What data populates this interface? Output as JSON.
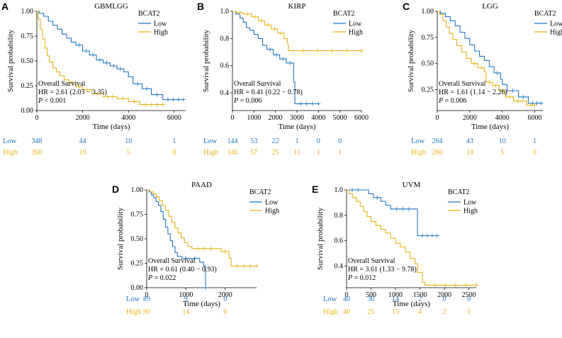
{
  "colors": {
    "low": "#1f77c2",
    "high": "#e8b214",
    "axis": "#000000"
  },
  "chart_data": [
    {
      "type": "line",
      "panel": "A",
      "title": "GBMLGG",
      "xlabel": "Time (days)",
      "ylabel": "Survival probability",
      "xlim": [
        0,
        6500
      ],
      "ylim": [
        0,
        1.0
      ],
      "xticks": [
        0,
        2000,
        4000,
        6000
      ],
      "yticks": [
        0.0,
        0.25,
        0.5,
        0.75,
        1.0
      ],
      "ytick_labels": [
        "0.00",
        "0.25",
        "0.50",
        "0.75",
        "1.00"
      ],
      "legend_title": "BCAT2",
      "legend_labels": [
        "Low",
        "High"
      ],
      "annotation": {
        "title": "Overall Survival",
        "hr": "HR = 2.61  (2.03 − 3.35)",
        "p_label": "P",
        "p_value": " < 0.001"
      },
      "series": [
        {
          "name": "Low",
          "points": [
            [
              0,
              1.0
            ],
            [
              100,
              0.98
            ],
            [
              300,
              0.95
            ],
            [
              500,
              0.9
            ],
            [
              700,
              0.86
            ],
            [
              900,
              0.82
            ],
            [
              1100,
              0.77
            ],
            [
              1300,
              0.73
            ],
            [
              1500,
              0.69
            ],
            [
              1700,
              0.66
            ],
            [
              2000,
              0.6
            ],
            [
              2300,
              0.56
            ],
            [
              2600,
              0.51
            ],
            [
              2900,
              0.48
            ],
            [
              3200,
              0.45
            ],
            [
              3500,
              0.42
            ],
            [
              3800,
              0.39
            ],
            [
              4000,
              0.34
            ],
            [
              4200,
              0.27
            ],
            [
              4600,
              0.22
            ],
            [
              5000,
              0.16
            ],
            [
              5500,
              0.11
            ],
            [
              6400,
              0.11
            ]
          ]
        },
        {
          "name": "High",
          "points": [
            [
              0,
              1.0
            ],
            [
              60,
              0.92
            ],
            [
              150,
              0.82
            ],
            [
              250,
              0.72
            ],
            [
              350,
              0.63
            ],
            [
              450,
              0.55
            ],
            [
              550,
              0.49
            ],
            [
              700,
              0.43
            ],
            [
              850,
              0.39
            ],
            [
              1000,
              0.35
            ],
            [
              1200,
              0.31
            ],
            [
              1400,
              0.28
            ],
            [
              1700,
              0.24
            ],
            [
              2000,
              0.21
            ],
            [
              2400,
              0.17
            ],
            [
              2900,
              0.14
            ],
            [
              3500,
              0.12
            ],
            [
              4000,
              0.09
            ],
            [
              4500,
              0.06
            ],
            [
              5500,
              0.06
            ]
          ]
        }
      ],
      "risk_table": {
        "row_labels": [
          "Low",
          "High"
        ],
        "times": [
          0,
          2000,
          4000,
          6000
        ],
        "low": [
          "348",
          "44",
          "10",
          "1"
        ],
        "high": [
          "350",
          "19",
          "5",
          "0"
        ]
      }
    },
    {
      "type": "line",
      "panel": "B",
      "title": "KIRP",
      "xlabel": "Time (days)",
      "ylabel": "Survival probability",
      "xlim": [
        0,
        6000
      ],
      "ylim": [
        0.27,
        1.0
      ],
      "xticks": [
        0,
        1000,
        2000,
        3000,
        4000,
        5000,
        6000
      ],
      "yticks": [
        0.4,
        0.6,
        0.8,
        1.0
      ],
      "ytick_labels": [
        "0.4",
        "0.6",
        "0.8",
        "1.0"
      ],
      "legend_title": "BCAT2",
      "legend_labels": [
        "Low",
        "High"
      ],
      "annotation": {
        "title": "Overall Survival",
        "hr": "HR = 0.41  (0.22 − 0.78)",
        "p_label": "P",
        "p_value": " = 0.006"
      },
      "series": [
        {
          "name": "Low",
          "points": [
            [
              0,
              1.0
            ],
            [
              150,
              0.98
            ],
            [
              350,
              0.95
            ],
            [
              500,
              0.92
            ],
            [
              650,
              0.88
            ],
            [
              800,
              0.86
            ],
            [
              1000,
              0.83
            ],
            [
              1200,
              0.8
            ],
            [
              1400,
              0.75
            ],
            [
              1600,
              0.72
            ],
            [
              1900,
              0.68
            ],
            [
              2200,
              0.65
            ],
            [
              2500,
              0.62
            ],
            [
              2850,
              0.48
            ],
            [
              2900,
              0.32
            ],
            [
              4000,
              0.32
            ]
          ]
        },
        {
          "name": "High",
          "points": [
            [
              0,
              1.0
            ],
            [
              200,
              0.99
            ],
            [
              500,
              0.98
            ],
            [
              900,
              0.96
            ],
            [
              1200,
              0.93
            ],
            [
              1500,
              0.9
            ],
            [
              1800,
              0.87
            ],
            [
              2100,
              0.84
            ],
            [
              2400,
              0.8
            ],
            [
              2550,
              0.76
            ],
            [
              2600,
              0.71
            ],
            [
              6000,
              0.71
            ]
          ]
        }
      ],
      "risk_table": {
        "row_labels": [
          "Low",
          "High"
        ],
        "times": [
          0,
          1000,
          2000,
          3000,
          4000,
          5000,
          6000
        ],
        "low": [
          "144",
          "53",
          "22",
          "1",
          "0",
          "0",
          ""
        ],
        "high": [
          "146",
          "57",
          "25",
          "11",
          "1",
          "1",
          ""
        ]
      }
    },
    {
      "type": "line",
      "panel": "C",
      "title": "LGG",
      "xlabel": "Time (days)",
      "ylabel": "Survival probability",
      "xlim": [
        0,
        6500
      ],
      "ylim": [
        0.05,
        1.0
      ],
      "xticks": [
        0,
        2000,
        4000,
        6000
      ],
      "yticks": [
        0.25,
        0.5,
        0.75,
        1.0
      ],
      "ytick_labels": [
        "0.25",
        "0.50",
        "0.75",
        "1.00"
      ],
      "legend_title": "BCAT2",
      "legend_labels": [
        "Low",
        "High"
      ],
      "annotation": {
        "title": "Overall Survival",
        "hr": "HR = 1.61  (1.14 − 2.26)",
        "p_label": "P",
        "p_value": " = 0.006"
      },
      "series": [
        {
          "name": "Low",
          "points": [
            [
              0,
              1.0
            ],
            [
              200,
              0.98
            ],
            [
              500,
              0.95
            ],
            [
              800,
              0.91
            ],
            [
              1100,
              0.86
            ],
            [
              1400,
              0.8
            ],
            [
              1700,
              0.74
            ],
            [
              2000,
              0.68
            ],
            [
              2300,
              0.62
            ],
            [
              2600,
              0.57
            ],
            [
              2900,
              0.53
            ],
            [
              3200,
              0.47
            ],
            [
              3500,
              0.41
            ],
            [
              3900,
              0.35
            ],
            [
              4000,
              0.3
            ],
            [
              4300,
              0.24
            ],
            [
              5000,
              0.18
            ],
            [
              5600,
              0.12
            ],
            [
              6400,
              0.12
            ]
          ]
        },
        {
          "name": "High",
          "points": [
            [
              0,
              1.0
            ],
            [
              150,
              0.97
            ],
            [
              350,
              0.91
            ],
            [
              550,
              0.85
            ],
            [
              750,
              0.79
            ],
            [
              950,
              0.73
            ],
            [
              1200,
              0.67
            ],
            [
              1500,
              0.61
            ],
            [
              1800,
              0.55
            ],
            [
              2100,
              0.5
            ],
            [
              2500,
              0.46
            ],
            [
              2900,
              0.42
            ],
            [
              3000,
              0.32
            ],
            [
              3400,
              0.29
            ],
            [
              3800,
              0.24
            ],
            [
              4200,
              0.18
            ],
            [
              4700,
              0.14
            ],
            [
              5500,
              0.1
            ],
            [
              6000,
              0.1
            ]
          ]
        }
      ],
      "risk_table": {
        "row_labels": [
          "Low",
          "High"
        ],
        "times": [
          0,
          2000,
          4000,
          6000
        ],
        "low": [
          "264",
          "43",
          "10",
          "1"
        ],
        "high": [
          "266",
          "18",
          "5",
          "0"
        ]
      }
    },
    {
      "type": "line",
      "panel": "D",
      "title": "PAAD",
      "xlabel": "Time (days)",
      "ylabel": "Survival probability",
      "xlim": [
        0,
        2800
      ],
      "ylim": [
        0,
        1.0
      ],
      "xticks": [
        0,
        1000,
        2000
      ],
      "yticks": [
        0.0,
        0.25,
        0.5,
        0.75,
        1.0
      ],
      "ytick_labels": [
        "0.00",
        "0.25",
        "0.50",
        "0.75",
        "1.00"
      ],
      "legend_title": "BCAT2",
      "legend_labels": [
        "Low",
        "High"
      ],
      "annotation": {
        "title": "Overall Survival",
        "hr": "HR = 0.61  (0.40 − 0.93)",
        "p_label": "P",
        "p_value": " = 0.022"
      },
      "series": [
        {
          "name": "Low",
          "points": [
            [
              0,
              1.0
            ],
            [
              60,
              0.98
            ],
            [
              120,
              0.95
            ],
            [
              180,
              0.92
            ],
            [
              240,
              0.88
            ],
            [
              300,
              0.84
            ],
            [
              360,
              0.78
            ],
            [
              420,
              0.7
            ],
            [
              480,
              0.62
            ],
            [
              540,
              0.55
            ],
            [
              600,
              0.48
            ],
            [
              660,
              0.42
            ],
            [
              720,
              0.36
            ],
            [
              780,
              0.32
            ],
            [
              900,
              0.3
            ],
            [
              1100,
              0.3
            ],
            [
              1350,
              0.26
            ],
            [
              1450,
              0.22
            ],
            [
              1500,
              0.0
            ]
          ]
        },
        {
          "name": "High",
          "points": [
            [
              0,
              1.0
            ],
            [
              80,
              0.98
            ],
            [
              160,
              0.96
            ],
            [
              240,
              0.93
            ],
            [
              320,
              0.89
            ],
            [
              400,
              0.84
            ],
            [
              480,
              0.79
            ],
            [
              560,
              0.73
            ],
            [
              640,
              0.67
            ],
            [
              720,
              0.61
            ],
            [
              800,
              0.56
            ],
            [
              880,
              0.51
            ],
            [
              960,
              0.46
            ],
            [
              1050,
              0.42
            ],
            [
              1150,
              0.4
            ],
            [
              1800,
              0.4
            ],
            [
              1900,
              0.37
            ],
            [
              2100,
              0.3
            ],
            [
              2150,
              0.22
            ],
            [
              2800,
              0.22
            ]
          ]
        }
      ],
      "risk_table": {
        "row_labels": [
          "Low",
          "High"
        ],
        "times": [
          0,
          1000,
          2000
        ],
        "low": [
          "89",
          "9",
          "0"
        ],
        "high": [
          "90",
          "14",
          "6"
        ]
      }
    },
    {
      "type": "line",
      "panel": "E",
      "title": "UVM",
      "xlabel": "Time (days)",
      "ylabel": "Survival probability",
      "xlim": [
        0,
        2650
      ],
      "ylim": [
        0.23,
        1.0
      ],
      "xticks": [
        0,
        500,
        1000,
        1500,
        2000,
        2500
      ],
      "yticks": [
        0.4,
        0.6,
        0.8,
        1.0
      ],
      "ytick_labels": [
        "0.4",
        "0.6",
        "0.8",
        "1.0"
      ],
      "legend_title": "BCAT2",
      "legend_labels": [
        "Low",
        "High"
      ],
      "annotation": {
        "title": "Overall Survival",
        "hr": "HR = 3.61  (1.33 − 9.78)",
        "p_label": "P",
        "p_value": " = 0.012"
      },
      "series": [
        {
          "name": "Low",
          "points": [
            [
              0,
              1.0
            ],
            [
              350,
              1.0
            ],
            [
              450,
              0.97
            ],
            [
              550,
              0.94
            ],
            [
              700,
              0.91
            ],
            [
              800,
              0.88
            ],
            [
              900,
              0.85
            ],
            [
              1400,
              0.85
            ],
            [
              1450,
              0.64
            ],
            [
              1850,
              0.64
            ]
          ]
        },
        {
          "name": "High",
          "points": [
            [
              0,
              1.0
            ],
            [
              50,
              0.97
            ],
            [
              120,
              0.94
            ],
            [
              200,
              0.91
            ],
            [
              280,
              0.87
            ],
            [
              350,
              0.83
            ],
            [
              420,
              0.79
            ],
            [
              500,
              0.75
            ],
            [
              600,
              0.72
            ],
            [
              700,
              0.69
            ],
            [
              800,
              0.66
            ],
            [
              900,
              0.62
            ],
            [
              1000,
              0.58
            ],
            [
              1100,
              0.55
            ],
            [
              1200,
              0.51
            ],
            [
              1300,
              0.46
            ],
            [
              1400,
              0.42
            ],
            [
              1450,
              0.35
            ],
            [
              1550,
              0.27
            ],
            [
              1600,
              0.25
            ],
            [
              2650,
              0.25
            ]
          ]
        }
      ],
      "risk_table": {
        "row_labels": [
          "Low",
          "High"
        ],
        "times": [
          0,
          500,
          1000,
          1500,
          2000,
          2500
        ],
        "low": [
          "40",
          "30",
          "14",
          "2",
          "0",
          "0"
        ],
        "high": [
          "40",
          "25",
          "15",
          "4",
          "2",
          "1"
        ]
      }
    }
  ]
}
